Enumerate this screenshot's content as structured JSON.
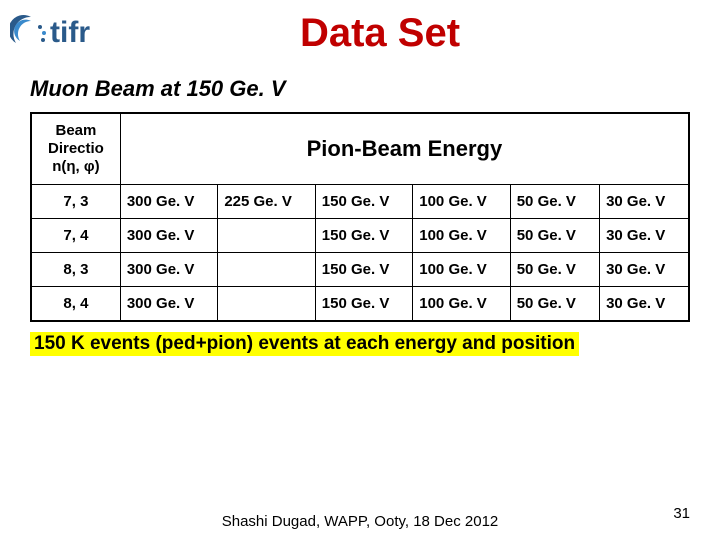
{
  "logo_text": "tifr",
  "title": "Data Set",
  "subtitle": "Muon Beam at 150 Ge. V",
  "table": {
    "header_direction": "Beam Directio n(η, φ)",
    "header_energy": "Pion-Beam Energy",
    "rows": [
      {
        "dir": "7, 3",
        "c1": "300 Ge. V",
        "c2": "225 Ge. V",
        "c3": "150 Ge. V",
        "c4": "100 Ge. V",
        "c5": "50 Ge. V",
        "c6": "30 Ge. V"
      },
      {
        "dir": "7, 4",
        "c1": "300 Ge. V",
        "c2": "",
        "c3": "150 Ge. V",
        "c4": "100 Ge. V",
        "c5": "50 Ge. V",
        "c6": "30 Ge. V"
      },
      {
        "dir": "8, 3",
        "c1": "300 Ge. V",
        "c2": "",
        "c3": "150 Ge. V",
        "c4": "100 Ge. V",
        "c5": "50 Ge. V",
        "c6": "30 Ge. V"
      },
      {
        "dir": "8, 4",
        "c1": "300 Ge. V",
        "c2": "",
        "c3": "150 Ge. V",
        "c4": "100 Ge. V",
        "c5": "50 Ge. V",
        "c6": "30 Ge. V"
      }
    ],
    "col_widths": [
      "88px",
      "96px",
      "96px",
      "96px",
      "96px",
      "88px",
      "88px"
    ]
  },
  "note": "150 K events (ped+pion) events at each energy and position",
  "footer": "Shashi Dugad, WAPP, Ooty, 18 Dec 2012",
  "page_number": "31",
  "colors": {
    "title": "#c00000",
    "logo_text": "#2a5a8a",
    "logo_swoosh1": "#2a5a8a",
    "logo_swoosh2": "#3a8acc",
    "highlight": "#ffff00",
    "border": "#000000",
    "background": "#ffffff"
  }
}
